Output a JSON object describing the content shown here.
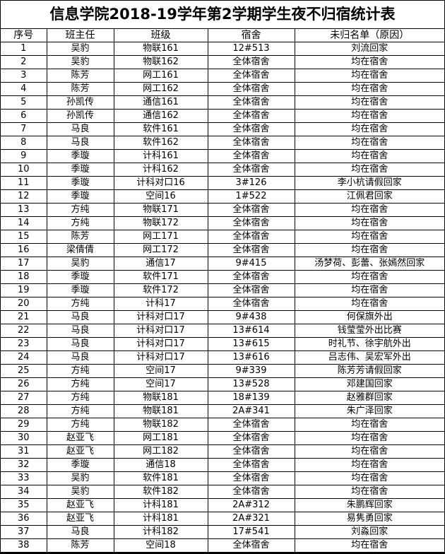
{
  "title": "信息学院2018-19学年第2学期学生夜不归宿统计表",
  "columns": [
    "序号",
    "班主任",
    "班级",
    "宿舍",
    "未归名单（原因）"
  ],
  "rows": [
    [
      "1",
      "吴豹",
      "物联161",
      "12#513",
      "刘流回家"
    ],
    [
      "2",
      "吴豹",
      "物联162",
      "全体宿舍",
      "均在宿舍"
    ],
    [
      "3",
      "陈芳",
      "网工161",
      "全体宿舍",
      "均在宿舍"
    ],
    [
      "4",
      "陈芳",
      "网工162",
      "全体宿舍",
      "均在宿舍"
    ],
    [
      "5",
      "孙凯传",
      "通信161",
      "全体宿舍",
      "均在宿舍"
    ],
    [
      "6",
      "孙凯传",
      "通信162",
      "全体宿舍",
      "均在宿舍"
    ],
    [
      "7",
      "马良",
      "软件161",
      "全体宿舍",
      "均在宿舍"
    ],
    [
      "8",
      "马良",
      "软件162",
      "全体宿舍",
      "均在宿舍"
    ],
    [
      "9",
      "季璇",
      "计科161",
      "全体宿舍",
      "均在宿舍"
    ],
    [
      "10",
      "季璇",
      "计科162",
      "全体宿舍",
      "均在宿舍"
    ],
    [
      "11",
      "季璇",
      "计科对口16",
      "3#126",
      "李小杭请假回家"
    ],
    [
      "12",
      "季璇",
      "空间16",
      "1#522",
      "江佩君回家"
    ],
    [
      "13",
      "方纯",
      "物联171",
      "全体宿舍",
      "均在宿舍"
    ],
    [
      "14",
      "方纯",
      "物联172",
      "全体宿舍",
      "均在宿舍"
    ],
    [
      "15",
      "陈芳",
      "网工171",
      "全体宿舍",
      "均在宿舍"
    ],
    [
      "16",
      "梁倩倩",
      "网工172",
      "全体宿舍",
      "均在宿舍"
    ],
    [
      "17",
      "吴豹",
      "通信17",
      "9#415",
      "汤梦荷、彭蕾、张嫣然回家"
    ],
    [
      "18",
      "季璇",
      "软件171",
      "全体宿舍",
      "均在宿舍"
    ],
    [
      "19",
      "季璇",
      "软件172",
      "全体宿舍",
      "均在宿舍"
    ],
    [
      "20",
      "方纯",
      "计科17",
      "全体宿舍",
      "均在宿舍"
    ],
    [
      "21",
      "马良",
      "计科对口17",
      "9#438",
      "何保旗外出"
    ],
    [
      "22",
      "马良",
      "计科对口17",
      "13#614",
      "钱莹莹外出比赛"
    ],
    [
      "23",
      "马良",
      "计科对口17",
      "13#615",
      "时礼节、徐宇航外出"
    ],
    [
      "24",
      "马良",
      "计科对口17",
      "13#616",
      "吕志伟、吴宏军外出"
    ],
    [
      "25",
      "方纯",
      "空间17",
      "9#339",
      "陈芳芳请假回家"
    ],
    [
      "26",
      "方纯",
      "空间17",
      "13#528",
      "邓建国回家"
    ],
    [
      "27",
      "方纯",
      "物联181",
      "18#139",
      "赵雅群回家"
    ],
    [
      "28",
      "方纯",
      "物联181",
      "2A#341",
      "朱广泽回家"
    ],
    [
      "29",
      "方纯",
      "物联182",
      "全体宿舍",
      "均在宿舍"
    ],
    [
      "30",
      "赵亚飞",
      "网工181",
      "全体宿舍",
      "均在宿舍"
    ],
    [
      "31",
      "赵亚飞",
      "网工182",
      "全体宿舍",
      "均在宿舍"
    ],
    [
      "32",
      "季璇",
      "通信18",
      "全体宿舍",
      "均在宿舍"
    ],
    [
      "33",
      "吴豹",
      "软件181",
      "全体宿舍",
      "均在宿舍"
    ],
    [
      "34",
      "吴豹",
      "软件182",
      "全体宿舍",
      "均在宿舍"
    ],
    [
      "35",
      "赵亚飞",
      "计科181",
      "2A#312",
      "朱鹏辉回家"
    ],
    [
      "36",
      "赵亚飞",
      "计科181",
      "2A#321",
      "易隽勇回家"
    ],
    [
      "37",
      "马良",
      "计科182",
      "17#541",
      "刘淼回家"
    ],
    [
      "38",
      "陈芳",
      "空间18",
      "全体宿舍",
      "均在宿舍"
    ]
  ]
}
